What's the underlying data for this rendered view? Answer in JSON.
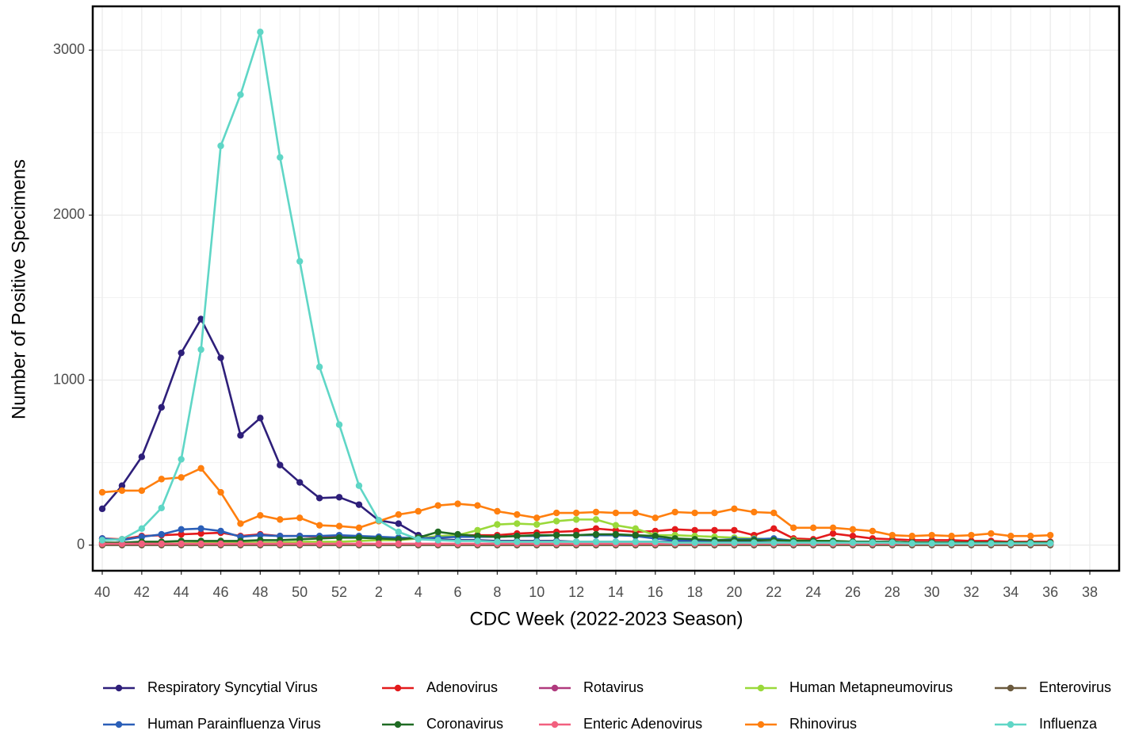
{
  "chart_data": {
    "type": "line",
    "x_label": "CDC Week (2022-2023 Season)",
    "y_label": "Number of Positive Specimens",
    "categories": [
      "40",
      null,
      "42",
      null,
      "44",
      null,
      "46",
      null,
      "48",
      null,
      "50",
      null,
      "52",
      null,
      "2",
      null,
      "4",
      null,
      "6",
      null,
      "8",
      null,
      "10",
      null,
      "12",
      null,
      "14",
      null,
      "16",
      null,
      "18",
      null,
      "20",
      null,
      "22",
      null,
      "24",
      null,
      "26",
      null,
      "28",
      null,
      "30",
      null,
      "32",
      null,
      "34",
      null,
      "36",
      null,
      "38"
    ],
    "ylim": [
      -155.5,
      3265.5
    ],
    "yticks": [
      0,
      1000,
      2000,
      3000
    ],
    "grid": true,
    "legend": "bottom",
    "series": [
      {
        "name": "Respiratory Syncytial Virus",
        "color": "#2e1f7a",
        "values": [
          220,
          360,
          535,
          835,
          1165,
          1370,
          1135,
          665,
          770,
          485,
          380,
          285,
          290,
          245,
          150,
          130,
          60,
          35,
          30,
          30,
          25,
          25,
          25,
          25,
          20,
          20,
          20,
          20,
          20,
          20,
          20,
          20,
          20,
          20,
          15,
          15,
          15,
          15,
          15,
          15,
          10,
          10,
          10,
          10,
          10,
          10,
          10,
          10,
          10,
          null,
          null
        ]
      },
      {
        "name": "Adenovirus",
        "color": "#e31a1c",
        "values": [
          40,
          35,
          55,
          60,
          65,
          70,
          75,
          55,
          65,
          55,
          55,
          50,
          55,
          50,
          45,
          40,
          45,
          50,
          60,
          60,
          60,
          70,
          75,
          80,
          85,
          100,
          90,
          80,
          85,
          95,
          90,
          90,
          90,
          60,
          100,
          40,
          35,
          70,
          55,
          40,
          35,
          30,
          30,
          30,
          25,
          25,
          20,
          20,
          20,
          null,
          null
        ]
      },
      {
        "name": "Rotavirus",
        "color": "#b03a7e",
        "values": [
          5,
          5,
          5,
          5,
          5,
          5,
          5,
          5,
          5,
          5,
          5,
          5,
          5,
          5,
          5,
          5,
          5,
          5,
          5,
          5,
          5,
          5,
          5,
          5,
          5,
          5,
          5,
          5,
          5,
          5,
          5,
          5,
          5,
          5,
          5,
          5,
          5,
          5,
          5,
          5,
          5,
          5,
          5,
          5,
          5,
          5,
          5,
          5,
          5,
          null,
          null
        ]
      },
      {
        "name": "Human Metapneumovirus",
        "color": "#9ad93a",
        "values": [
          10,
          10,
          10,
          10,
          10,
          15,
          15,
          15,
          15,
          15,
          20,
          20,
          20,
          25,
          30,
          30,
          40,
          55,
          60,
          90,
          125,
          130,
          125,
          145,
          155,
          155,
          120,
          100,
          60,
          60,
          55,
          50,
          45,
          40,
          35,
          30,
          25,
          25,
          20,
          20,
          20,
          15,
          15,
          15,
          15,
          15,
          15,
          15,
          15,
          null,
          null
        ]
      },
      {
        "name": "Enterovirus",
        "color": "#6b5a3e",
        "values": [
          0,
          0,
          0,
          0,
          0,
          0,
          0,
          0,
          0,
          0,
          0,
          0,
          0,
          0,
          0,
          0,
          0,
          0,
          0,
          0,
          0,
          0,
          0,
          0,
          0,
          0,
          0,
          0,
          0,
          0,
          0,
          0,
          0,
          0,
          0,
          0,
          0,
          0,
          0,
          0,
          0,
          0,
          0,
          0,
          0,
          0,
          0,
          0,
          0,
          null,
          null
        ]
      },
      {
        "name": "Human Parainfluenza Virus",
        "color": "#2b5fb8",
        "values": [
          40,
          30,
          50,
          65,
          95,
          100,
          85,
          50,
          60,
          55,
          55,
          55,
          60,
          55,
          50,
          45,
          40,
          45,
          50,
          50,
          50,
          55,
          55,
          60,
          60,
          60,
          60,
          55,
          40,
          30,
          30,
          30,
          35,
          35,
          40,
          25,
          25,
          20,
          20,
          20,
          20,
          15,
          15,
          15,
          15,
          15,
          15,
          15,
          15,
          null,
          null
        ]
      },
      {
        "name": "Coronavirus",
        "color": "#1f6b23",
        "values": [
          15,
          15,
          20,
          20,
          25,
          25,
          25,
          25,
          30,
          30,
          35,
          40,
          45,
          45,
          40,
          35,
          45,
          80,
          65,
          55,
          50,
          55,
          60,
          60,
          60,
          65,
          65,
          60,
          55,
          40,
          35,
          30,
          30,
          30,
          30,
          25,
          25,
          25,
          20,
          20,
          20,
          15,
          15,
          15,
          15,
          15,
          15,
          15,
          15,
          null,
          null
        ]
      },
      {
        "name": "Enteric Adenovirus",
        "color": "#f2607f",
        "values": [
          8,
          8,
          8,
          8,
          8,
          8,
          8,
          8,
          8,
          8,
          8,
          8,
          8,
          8,
          8,
          8,
          8,
          8,
          8,
          8,
          8,
          8,
          8,
          8,
          8,
          8,
          8,
          8,
          8,
          8,
          8,
          8,
          8,
          8,
          8,
          8,
          8,
          8,
          8,
          8,
          8,
          8,
          8,
          8,
          8,
          8,
          8,
          8,
          8,
          null,
          null
        ]
      },
      {
        "name": "Rhinovirus",
        "color": "#ff7f0e",
        "values": [
          320,
          330,
          330,
          400,
          410,
          465,
          320,
          130,
          180,
          155,
          165,
          120,
          115,
          105,
          145,
          185,
          205,
          240,
          250,
          240,
          205,
          185,
          165,
          195,
          195,
          200,
          195,
          195,
          165,
          200,
          195,
          195,
          220,
          200,
          195,
          105,
          105,
          105,
          95,
          85,
          60,
          55,
          60,
          55,
          60,
          70,
          55,
          55,
          60,
          null,
          null
        ]
      },
      {
        "name": "Influenza",
        "color": "#5fd6c6",
        "values": [
          30,
          35,
          100,
          225,
          520,
          1185,
          2420,
          2730,
          3110,
          2350,
          1720,
          1080,
          730,
          360,
          150,
          80,
          35,
          30,
          25,
          25,
          20,
          20,
          20,
          20,
          20,
          20,
          20,
          20,
          20,
          15,
          15,
          15,
          15,
          15,
          15,
          15,
          15,
          15,
          15,
          15,
          15,
          10,
          10,
          10,
          10,
          10,
          10,
          10,
          10,
          null,
          null
        ]
      }
    ]
  }
}
